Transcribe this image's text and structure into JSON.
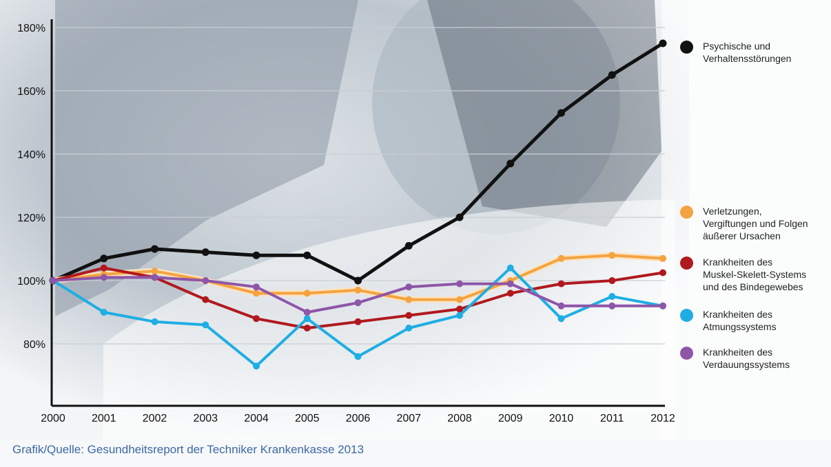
{
  "chart_data": {
    "type": "line",
    "x": [
      2000,
      2001,
      2002,
      2003,
      2004,
      2005,
      2006,
      2007,
      2008,
      2009,
      2010,
      2011,
      2012
    ],
    "y_ticks": [
      "80%",
      "100%",
      "120%",
      "140%",
      "160%",
      "180%"
    ],
    "ylim": [
      72,
      184
    ],
    "grid": true,
    "legend_position": "right",
    "series": [
      {
        "name": "Psychische und\nVerhaltensstörungen",
        "color": "#111111",
        "values": [
          100,
          107,
          110,
          109,
          108,
          108,
          100,
          111,
          120,
          137,
          153,
          165,
          175
        ]
      },
      {
        "name": "Verletzungen,\nVergiftungen und Folgen\näußerer Ursachen",
        "color": "#f4a340",
        "values": [
          100,
          102,
          103,
          100,
          96,
          96,
          97,
          94,
          94,
          100,
          107,
          108,
          107
        ]
      },
      {
        "name": "Krankheiten des\nMuskel-Skelett-Systems\nund des Bindegewebes",
        "color": "#b0191e",
        "values": [
          100,
          104,
          101,
          94,
          88,
          85,
          87,
          89,
          91,
          96,
          99,
          100,
          102.5
        ]
      },
      {
        "name": "Krankheiten des\nAtmungssystems",
        "color": "#1eaee3",
        "values": [
          100,
          90,
          87,
          86,
          73,
          88,
          76,
          85,
          89,
          104,
          88,
          95,
          92
        ]
      },
      {
        "name": "Krankheiten des\nVerdauungssystems",
        "color": "#8e56a8",
        "values": [
          100,
          101,
          101,
          100,
          98,
          90,
          93,
          98,
          99,
          99,
          92,
          92,
          92
        ]
      }
    ]
  },
  "source": "Grafik/Quelle: Gesundheitsreport der Techniker Krankenkasse 2013",
  "colors": {
    "background_photo": "#9aa7b2",
    "grid": "#c8ced3",
    "source_text": "#3b68a6"
  }
}
